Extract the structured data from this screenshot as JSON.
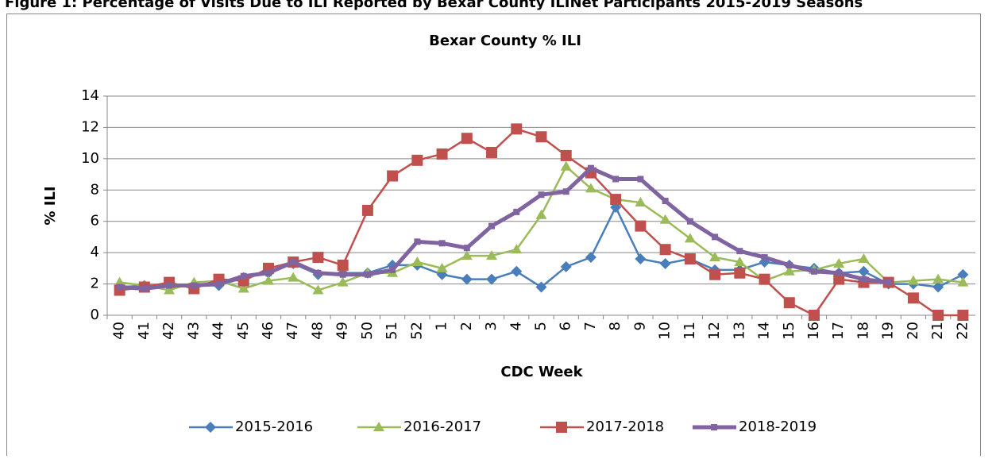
{
  "figure_caption": "Figure 1: Percentage of Visits Due to ILI Reported by Bexar County ILINet Participants 2015-2019 Seasons",
  "chart_data": {
    "type": "line",
    "title": "Bexar County % ILI",
    "x_label": "CDC Week",
    "y_label": "% ILI",
    "categories": [
      "40",
      "41",
      "42",
      "43",
      "44",
      "45",
      "46",
      "47",
      "48",
      "49",
      "50",
      "51",
      "52",
      "1",
      "2",
      "3",
      "4",
      "5",
      "6",
      "7",
      "8",
      "9",
      "10",
      "11",
      "12",
      "13",
      "14",
      "15",
      "16",
      "17",
      "18",
      "19",
      "20",
      "21",
      "22"
    ],
    "ylim": [
      0,
      14
    ],
    "yticks": [
      0,
      2,
      4,
      6,
      8,
      10,
      12,
      14
    ],
    "grid": true,
    "legend": "bottom",
    "series": [
      {
        "name": "2015-2016",
        "color": "#4a7ebb",
        "marker": "diamond",
        "values": [
          1.8,
          1.9,
          1.9,
          1.9,
          1.9,
          2.4,
          2.7,
          3.3,
          2.6,
          2.7,
          2.7,
          3.2,
          3.2,
          2.6,
          2.3,
          2.3,
          2.8,
          1.8,
          3.1,
          3.7,
          6.9,
          3.6,
          3.3,
          3.6,
          2.9,
          2.9,
          3.4,
          3.2,
          3.0,
          2.7,
          2.8,
          2.0,
          2.0,
          1.8,
          2.6
        ]
      },
      {
        "name": "2016-2017",
        "color": "#9bbb59",
        "marker": "triangle",
        "values": [
          2.1,
          1.9,
          1.6,
          2.1,
          2.2,
          1.7,
          2.2,
          2.4,
          1.6,
          2.1,
          2.7,
          2.7,
          3.4,
          3.0,
          3.8,
          3.8,
          4.2,
          6.4,
          9.5,
          8.1,
          7.4,
          7.2,
          6.1,
          4.9,
          3.7,
          3.4,
          2.2,
          2.8,
          2.9,
          3.3,
          3.6,
          2.1,
          2.2,
          2.3,
          2.1
        ]
      },
      {
        "name": "2017-2018",
        "color": "#c0504d",
        "marker": "square",
        "values": [
          1.6,
          1.8,
          2.1,
          1.7,
          2.3,
          2.2,
          3.0,
          3.4,
          3.7,
          3.2,
          6.7,
          8.9,
          9.9,
          10.3,
          11.3,
          10.4,
          11.9,
          11.4,
          10.2,
          9.1,
          7.4,
          5.7,
          4.2,
          3.6,
          2.6,
          2.7,
          2.3,
          0.8,
          0,
          2.3,
          2.1,
          2.1,
          1.1,
          0,
          0
        ]
      },
      {
        "name": "2018-2019",
        "color": "#8064a2",
        "marker": "small-square",
        "values": [
          1.8,
          1.7,
          1.9,
          1.9,
          2.0,
          2.5,
          2.7,
          3.4,
          2.7,
          2.6,
          2.6,
          2.9,
          4.7,
          4.6,
          4.3,
          5.7,
          6.6,
          7.7,
          7.9,
          9.4,
          8.7,
          8.7,
          7.3,
          6.0,
          5.0,
          4.1,
          3.7,
          3.2,
          2.8,
          2.7,
          2.3,
          2.1,
          null,
          null,
          null
        ]
      }
    ]
  }
}
